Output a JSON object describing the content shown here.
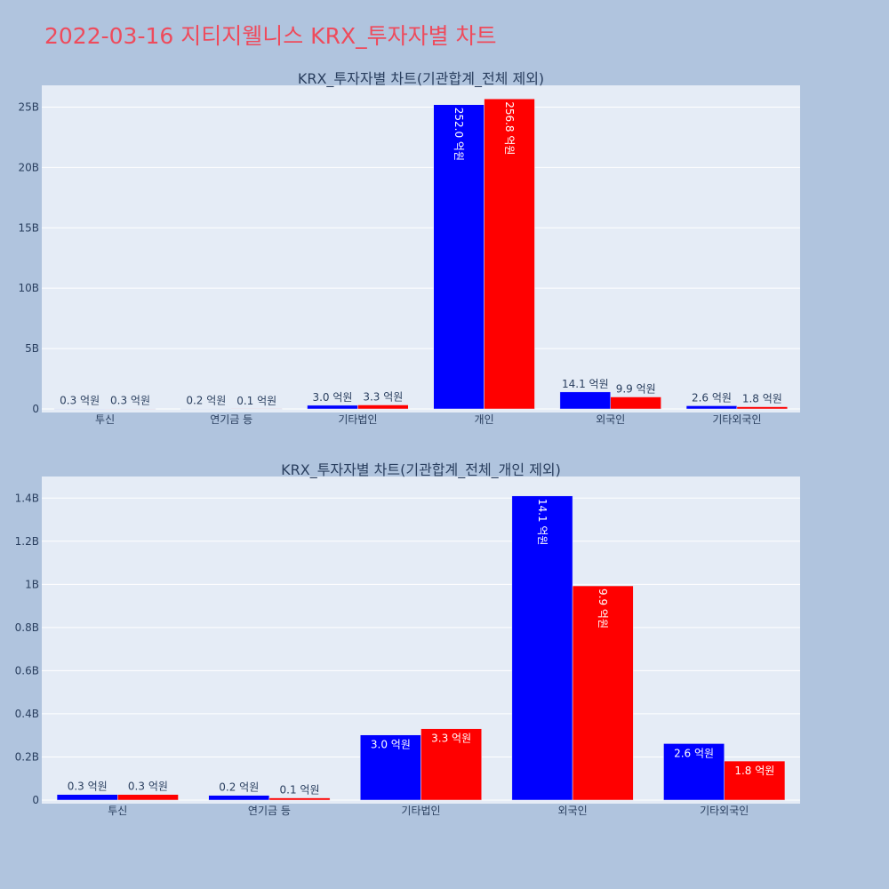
{
  "page_title": "2022-03-16 지티지웰니스 KRX_투자자별 차트",
  "colors": {
    "background": "#b0c4de",
    "plot_bg": "#e5ecf6",
    "series_a": "#0000ff",
    "series_b": "#ff0000",
    "title": "#ee4b5c",
    "text": "#2a3f5f"
  },
  "chart_data": [
    {
      "type": "bar",
      "title": "KRX_투자자별 차트(기관합계_전체 제외)",
      "categories": [
        "투신",
        "연기금 등",
        "기타법인",
        "개인",
        "외국인",
        "기타외국인"
      ],
      "series": [
        {
          "values": [
            26000000,
            22000000,
            302000000,
            25200000000,
            1410000000,
            262000000
          ],
          "labels": [
            "0.3 억원",
            "0.2 억원",
            "3.0 억원",
            "252.0 억원",
            "14.1 억원",
            "2.6 억원"
          ]
        },
        {
          "values": [
            26000000,
            10000000,
            331000000,
            25680000000,
            993000000,
            181000000
          ],
          "labels": [
            "0.3 억원",
            "0.1 억원",
            "3.3 억원",
            "256.8 억원",
            "9.9 억원",
            "1.8 억원"
          ]
        }
      ],
      "yticks": [
        0,
        5000000000,
        10000000000,
        15000000000,
        20000000000,
        25000000000
      ],
      "yticklabels": [
        "0",
        "5B",
        "10B",
        "15B",
        "20B",
        "25B"
      ],
      "ylim": [
        0,
        26800000000
      ],
      "grid": true
    },
    {
      "type": "bar",
      "title": "KRX_투자자별 차트(기관합계_전체_개인 제외)",
      "categories": [
        "투신",
        "연기금 등",
        "기타법인",
        "외국인",
        "기타외국인"
      ],
      "series": [
        {
          "values": [
            26000000,
            22000000,
            302000000,
            1410000000,
            262000000
          ],
          "labels": [
            "0.3 억원",
            "0.2 억원",
            "3.0 억원",
            "14.1 억원",
            "2.6 억원"
          ]
        },
        {
          "values": [
            26000000,
            10000000,
            331000000,
            993000000,
            181000000
          ],
          "labels": [
            "0.3 억원",
            "0.1 억원",
            "3.3 억원",
            "9.9 억원",
            "1.8 억원"
          ]
        }
      ],
      "yticks": [
        0,
        200000000,
        400000000,
        600000000,
        800000000,
        1000000000,
        1200000000,
        1400000000
      ],
      "yticklabels": [
        "0",
        "0.2B",
        "0.4B",
        "0.6B",
        "0.8B",
        "1B",
        "1.2B",
        "1.4B"
      ],
      "ylim": [
        0,
        1500000000
      ],
      "grid": true
    }
  ]
}
